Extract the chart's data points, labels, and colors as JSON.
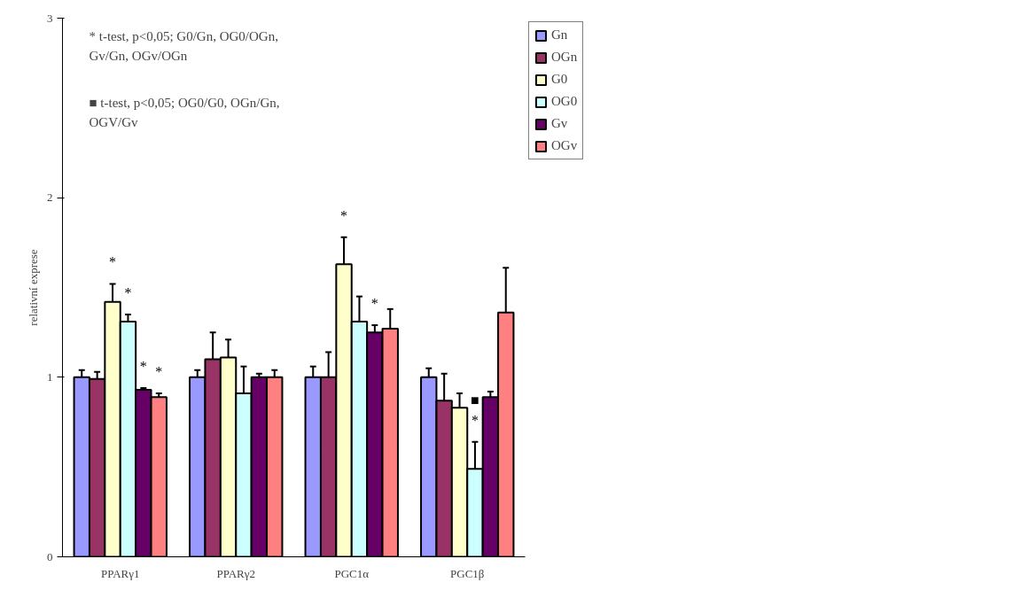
{
  "chart_data": {
    "type": "bar",
    "ylabel": "relativní exprese",
    "categories": [
      "PPARγ1",
      "PPARγ2",
      "PGC1α",
      "PGC1β"
    ],
    "ylim": [
      0,
      3
    ],
    "yticks": [
      0,
      1,
      2,
      3
    ],
    "grid": false,
    "legend": "right",
    "annotations": [
      "* t-test, p<0,05;    G0/Gn, OG0/OGn,\nGv/Gn, OGv/OGn",
      "■  t-test, p<0,05; OG0/G0, OGn/Gn,\nOGV/Gv"
    ],
    "series": [
      {
        "name": "Gn",
        "color": "#9999ff",
        "values": [
          1.0,
          1.0,
          1.0,
          1.0
        ],
        "errors": [
          [
            1.0,
            1.04
          ],
          [
            1.0,
            1.04
          ],
          [
            1.0,
            1.06
          ],
          [
            1.0,
            1.05
          ]
        ],
        "value_labels": [
          null,
          null,
          null,
          null
        ]
      },
      {
        "name": "OGn",
        "color": "#993366",
        "values": [
          0.99,
          1.1,
          1.0,
          0.87
        ],
        "errors": [
          [
            0.99,
            1.03
          ],
          [
            1.1,
            1.25
          ],
          [
            1.0,
            1.14
          ],
          [
            0.87,
            1.02
          ]
        ],
        "value_labels": [
          null,
          null,
          null,
          null
        ]
      },
      {
        "name": "G0",
        "color": "#ffffcc",
        "values": [
          1.42,
          1.11,
          1.63,
          0.83
        ],
        "errors": [
          [
            1.42,
            1.52
          ],
          [
            1.11,
            1.21
          ],
          [
            1.63,
            1.78
          ],
          [
            0.83,
            0.91
          ]
        ],
        "value_labels": [
          "*",
          null,
          "*",
          null
        ]
      },
      {
        "name": "OG0",
        "color": "#ccffff",
        "values": [
          1.31,
          0.91,
          1.31,
          0.49
        ],
        "errors": [
          [
            1.31,
            1.35
          ],
          [
            0.91,
            1.06
          ],
          [
            1.31,
            1.45
          ],
          [
            0.49,
            0.64
          ]
        ],
        "value_labels": [
          "*",
          null,
          null,
          "■\n*"
        ]
      },
      {
        "name": "Gv",
        "color": "#660066",
        "values": [
          0.93,
          1.0,
          1.25,
          0.89
        ],
        "errors": [
          [
            0.93,
            0.94
          ],
          [
            1.0,
            1.02
          ],
          [
            1.25,
            1.29
          ],
          [
            0.89,
            0.92
          ]
        ],
        "value_labels": [
          "*",
          null,
          "*",
          null
        ]
      },
      {
        "name": "OGv",
        "color": "#ff8080",
        "values": [
          0.89,
          1.0,
          1.27,
          1.36
        ],
        "errors": [
          [
            0.89,
            0.91
          ],
          [
            1.0,
            1.04
          ],
          [
            1.27,
            1.38
          ],
          [
            1.36,
            1.61
          ]
        ],
        "value_labels": [
          "*",
          null,
          null,
          null
        ]
      }
    ]
  }
}
